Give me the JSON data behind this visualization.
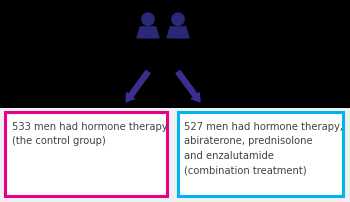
{
  "bg_color": "#000000",
  "box_bg": "#ffffff",
  "left_box_border": "#e8008a",
  "right_box_border": "#00b4f0",
  "arrow_color": "#3a2e8f",
  "person_color": "#2b2877",
  "left_text_lines": [
    "533 men had hormone therapy",
    "(the control group)"
  ],
  "right_text_lines": [
    "527 men had hormone therapy,",
    "abiraterone, prednisolone",
    "and enzalutamide",
    "(combination treatment)"
  ],
  "text_color": "#444444",
  "text_fontsize": 7.2,
  "fig_width": 3.5,
  "fig_height": 2.02,
  "dpi": 100
}
